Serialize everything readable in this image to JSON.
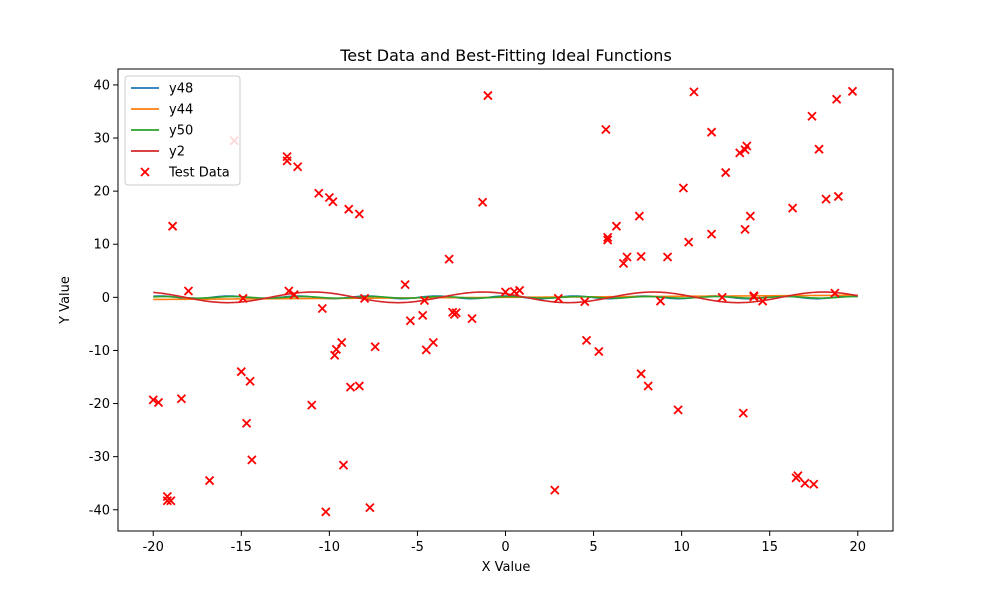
{
  "chart_data": {
    "type": "line+scatter",
    "title": "Test Data and Best-Fitting Ideal Functions",
    "xlabel": "X Value",
    "ylabel": "Y Value",
    "xlim": [
      -22,
      22
    ],
    "ylim": [
      -44,
      43
    ],
    "xticks": [
      -20,
      -15,
      -10,
      -5,
      0,
      5,
      10,
      15,
      20
    ],
    "yticks": [
      -40,
      -30,
      -20,
      -10,
      0,
      10,
      20,
      30,
      40
    ],
    "grid": false,
    "legend_position": "top-left",
    "x_range": [
      -20,
      20
    ],
    "series": [
      {
        "name": "y48",
        "kind": "line",
        "color": "#1f77b4"
      },
      {
        "name": "y44",
        "kind": "line",
        "color": "#ff7f0e"
      },
      {
        "name": "y50",
        "kind": "line",
        "color": "#2ca02c"
      },
      {
        "name": "y2",
        "kind": "line",
        "color": "#d62728"
      },
      {
        "name": "Test Data",
        "kind": "scatter",
        "marker": "x",
        "color": "#ff0000",
        "points": [
          [
            -20.0,
            -19.3
          ],
          [
            -19.7,
            -19.8
          ],
          [
            -19.2,
            -37.5
          ],
          [
            -19.2,
            -38.3
          ],
          [
            -19.0,
            -38.3
          ],
          [
            -18.9,
            13.4
          ],
          [
            -18.4,
            -19.1
          ],
          [
            -18.0,
            1.2
          ],
          [
            -16.8,
            -34.5
          ],
          [
            -15.4,
            29.5
          ],
          [
            -15.0,
            -14.0
          ],
          [
            -14.9,
            -0.2
          ],
          [
            -14.7,
            -23.7
          ],
          [
            -14.5,
            -15.8
          ],
          [
            -14.4,
            -30.6
          ],
          [
            -12.4,
            26.5
          ],
          [
            -12.4,
            25.7
          ],
          [
            -12.3,
            1.2
          ],
          [
            -12.0,
            0.5
          ],
          [
            -11.8,
            24.6
          ],
          [
            -11.0,
            -20.3
          ],
          [
            -10.6,
            19.6
          ],
          [
            -10.4,
            -2.1
          ],
          [
            -10.2,
            -40.4
          ],
          [
            -10.0,
            18.8
          ],
          [
            -9.8,
            18.0
          ],
          [
            -9.7,
            -10.9
          ],
          [
            -9.6,
            -9.8
          ],
          [
            -9.3,
            -8.5
          ],
          [
            -9.2,
            -31.6
          ],
          [
            -8.9,
            16.6
          ],
          [
            -8.8,
            -16.9
          ],
          [
            -8.3,
            15.7
          ],
          [
            -8.3,
            -16.7
          ],
          [
            -8.0,
            -0.2
          ],
          [
            -7.7,
            -39.6
          ],
          [
            -7.4,
            -9.3
          ],
          [
            -5.7,
            2.4
          ],
          [
            -5.4,
            -4.4
          ],
          [
            -4.7,
            -3.4
          ],
          [
            -4.6,
            -0.6
          ],
          [
            -4.5,
            -9.9
          ],
          [
            -4.1,
            -8.5
          ],
          [
            -3.2,
            7.2
          ],
          [
            -3.0,
            -2.8
          ],
          [
            -2.9,
            -3.2
          ],
          [
            -2.8,
            -2.9
          ],
          [
            -1.9,
            -4.0
          ],
          [
            -1.3,
            17.9
          ],
          [
            -1.0,
            38.0
          ],
          [
            0.0,
            1.0
          ],
          [
            0.5,
            1.1
          ],
          [
            0.8,
            1.3
          ],
          [
            2.8,
            -36.3
          ],
          [
            3.0,
            -0.2
          ],
          [
            4.5,
            -0.8
          ],
          [
            4.6,
            -8.1
          ],
          [
            5.3,
            -10.2
          ],
          [
            5.7,
            31.6
          ],
          [
            5.8,
            11.3
          ],
          [
            5.8,
            10.8
          ],
          [
            6.3,
            13.4
          ],
          [
            6.7,
            6.4
          ],
          [
            6.9,
            7.6
          ],
          [
            7.6,
            15.3
          ],
          [
            7.7,
            7.7
          ],
          [
            7.7,
            -14.4
          ],
          [
            8.1,
            -16.7
          ],
          [
            8.8,
            -0.7
          ],
          [
            9.2,
            7.6
          ],
          [
            9.8,
            -21.2
          ],
          [
            10.1,
            20.6
          ],
          [
            10.4,
            10.4
          ],
          [
            10.7,
            38.7
          ],
          [
            11.7,
            31.1
          ],
          [
            11.7,
            11.9
          ],
          [
            12.3,
            0.0
          ],
          [
            12.5,
            23.5
          ],
          [
            13.3,
            27.2
          ],
          [
            13.5,
            -21.8
          ],
          [
            13.6,
            12.8
          ],
          [
            13.7,
            28.5
          ],
          [
            13.6,
            27.8
          ],
          [
            13.9,
            15.3
          ],
          [
            14.1,
            0.1
          ],
          [
            14.1,
            0.3
          ],
          [
            14.6,
            -0.7
          ],
          [
            16.3,
            16.8
          ],
          [
            16.5,
            -34.0
          ],
          [
            16.6,
            -33.6
          ],
          [
            17.0,
            -35.0
          ],
          [
            17.4,
            34.1
          ],
          [
            17.5,
            -35.2
          ],
          [
            17.8,
            27.9
          ],
          [
            18.2,
            18.5
          ],
          [
            18.7,
            0.8
          ],
          [
            18.8,
            37.3
          ],
          [
            18.9,
            19.0
          ],
          [
            19.7,
            38.8
          ]
        ]
      }
    ]
  }
}
